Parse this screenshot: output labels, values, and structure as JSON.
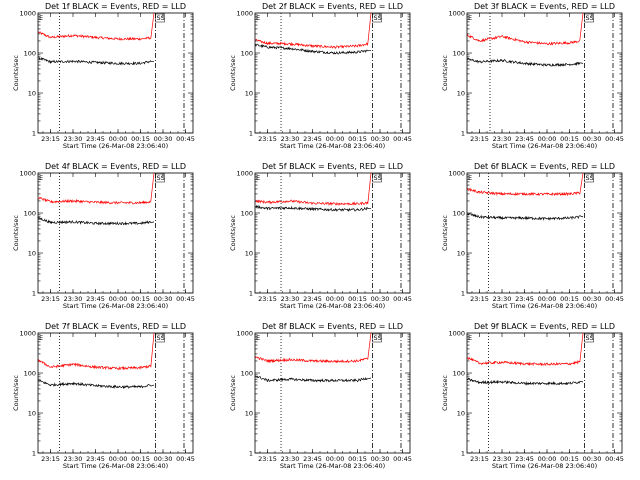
{
  "chart_data": [
    {
      "type": "line",
      "title": "Det 1f BLACK = Events, RED = LLD",
      "xlabel": "Start Time (26-Mar-08 23:06:40)",
      "ylabel": "Counts/sec",
      "x_ticks": [
        "23:15",
        "23:30",
        "23:45",
        "00:00",
        "00:15",
        "00:30",
        "00:45"
      ],
      "y_ticks": [
        "1",
        "10",
        "100",
        "1000"
      ],
      "y_scale": "log",
      "ylim": [
        1,
        1000
      ],
      "xlim": [
        "23:06:40",
        "00:50:00"
      ],
      "dotted_vline": "23:21",
      "dashdot_vlines": [
        "00:25",
        "00:44"
      ],
      "flag_label": "SS",
      "flag_at": "00:25",
      "series": [
        {
          "color": "#ff0000",
          "x": [
            "23:07",
            "23:15",
            "23:30",
            "23:45",
            "00:00",
            "00:15",
            "00:22",
            "00:24"
          ],
          "y": [
            330,
            245,
            275,
            245,
            225,
            225,
            240,
            1000
          ]
        },
        {
          "color": "#000000",
          "x": [
            "23:07",
            "23:15",
            "23:30",
            "23:45",
            "00:00",
            "00:15",
            "00:22",
            "00:24"
          ],
          "y": [
            75,
            60,
            62,
            58,
            55,
            55,
            62,
            62
          ]
        }
      ]
    },
    {
      "type": "line",
      "title": "Det 2f BLACK = Events, RED = LLD",
      "xlabel": "Start Time (26-Mar-08 23:06:40)",
      "ylabel": "Counts/sec",
      "x_ticks": [
        "23:15",
        "23:30",
        "23:45",
        "00:00",
        "00:15",
        "00:30",
        "00:45"
      ],
      "y_ticks": [
        "1",
        "10",
        "100",
        "1000"
      ],
      "y_scale": "log",
      "ylim": [
        1,
        1000
      ],
      "xlim": [
        "23:06:40",
        "00:50:00"
      ],
      "dotted_vline": "23:24",
      "dashdot_vlines": [
        "00:25",
        "00:44"
      ],
      "flag_label": "SS",
      "flag_at": "00:25",
      "series": [
        {
          "color": "#ff0000",
          "x": [
            "23:07",
            "23:15",
            "23:30",
            "23:45",
            "00:00",
            "00:15",
            "00:22",
            "00:24"
          ],
          "y": [
            210,
            175,
            170,
            150,
            140,
            150,
            170,
            1000
          ]
        },
        {
          "color": "#000000",
          "x": [
            "23:07",
            "23:15",
            "23:30",
            "23:45",
            "00:00",
            "00:15",
            "00:22",
            "00:24"
          ],
          "y": [
            160,
            140,
            130,
            110,
            100,
            105,
            115,
            115
          ]
        }
      ]
    },
    {
      "type": "line",
      "title": "Det 3f BLACK = Events, RED = LLD",
      "xlabel": "Start Time (26-Mar-08 23:06:40)",
      "ylabel": "Counts/sec",
      "x_ticks": [
        "23:15",
        "23:30",
        "23:45",
        "00:00",
        "00:15",
        "00:30",
        "00:45"
      ],
      "y_ticks": [
        "1",
        "10",
        "100",
        "1000"
      ],
      "y_scale": "log",
      "ylim": [
        1,
        1000
      ],
      "xlim": [
        "23:06:40",
        "00:50:00"
      ],
      "dotted_vline": "23:22",
      "dashdot_vlines": [
        "00:25",
        "00:44"
      ],
      "flag_label": "SS",
      "flag_at": "00:25",
      "series": [
        {
          "color": "#ff0000",
          "x": [
            "23:07",
            "23:15",
            "23:30",
            "23:45",
            "00:00",
            "00:15",
            "00:22",
            "00:24"
          ],
          "y": [
            280,
            200,
            260,
            190,
            170,
            180,
            200,
            1000
          ]
        },
        {
          "color": "#000000",
          "x": [
            "23:07",
            "23:15",
            "23:30",
            "23:45",
            "00:00",
            "00:15",
            "00:22",
            "00:24"
          ],
          "y": [
            70,
            60,
            65,
            55,
            50,
            52,
            55,
            55
          ]
        }
      ]
    },
    {
      "type": "line",
      "title": "Det 4f BLACK = Events, RED = LLD",
      "xlabel": "Start Time (26-Mar-08 23:06:40)",
      "ylabel": "Counts/sec",
      "x_ticks": [
        "23:15",
        "23:30",
        "23:45",
        "00:00",
        "00:15",
        "00:30",
        "00:45"
      ],
      "y_ticks": [
        "1",
        "10",
        "100",
        "1000"
      ],
      "y_scale": "log",
      "ylim": [
        1,
        1000
      ],
      "xlim": [
        "23:06:40",
        "00:50:00"
      ],
      "dotted_vline": "23:21",
      "dashdot_vlines": [
        "00:25",
        "00:44"
      ],
      "flag_label": "SS",
      "flag_at": "00:25",
      "series": [
        {
          "color": "#ff0000",
          "x": [
            "23:07",
            "23:15",
            "23:30",
            "23:45",
            "00:00",
            "00:15",
            "00:22",
            "00:24"
          ],
          "y": [
            240,
            190,
            200,
            185,
            180,
            180,
            190,
            1000
          ]
        },
        {
          "color": "#000000",
          "x": [
            "23:07",
            "23:15",
            "23:30",
            "23:45",
            "00:00",
            "00:15",
            "00:22",
            "00:24"
          ],
          "y": [
            75,
            58,
            60,
            55,
            55,
            55,
            60,
            60
          ]
        }
      ]
    },
    {
      "type": "line",
      "title": "Det 5f BLACK = Events, RED = LLD",
      "xlabel": "Start Time (26-Mar-08 23:06:40)",
      "ylabel": "Counts/sec",
      "x_ticks": [
        "23:15",
        "23:30",
        "23:45",
        "00:00",
        "00:15",
        "00:30",
        "00:45"
      ],
      "y_ticks": [
        "1",
        "10",
        "100",
        "1000"
      ],
      "y_scale": "log",
      "ylim": [
        1,
        1000
      ],
      "xlim": [
        "23:06:40",
        "00:50:00"
      ],
      "dotted_vline": "23:24",
      "dashdot_vlines": [
        "00:25",
        "00:44"
      ],
      "flag_label": "SS",
      "flag_at": "00:25",
      "series": [
        {
          "color": "#ff0000",
          "x": [
            "23:07",
            "23:15",
            "23:30",
            "23:45",
            "00:00",
            "00:15",
            "00:22",
            "00:24"
          ],
          "y": [
            200,
            185,
            200,
            175,
            170,
            170,
            180,
            1000
          ]
        },
        {
          "color": "#000000",
          "x": [
            "23:07",
            "23:15",
            "23:30",
            "23:45",
            "00:00",
            "00:15",
            "00:22",
            "00:24"
          ],
          "y": [
            145,
            130,
            135,
            125,
            120,
            120,
            130,
            130
          ]
        }
      ]
    },
    {
      "type": "line",
      "title": "Det 6f BLACK = Events, RED = LLD",
      "xlabel": "Start Time (26-Mar-08 23:06:40)",
      "ylabel": "Counts/sec",
      "x_ticks": [
        "23:15",
        "23:30",
        "23:45",
        "00:00",
        "00:15",
        "00:30",
        "00:45"
      ],
      "y_ticks": [
        "1",
        "10",
        "100",
        "1000"
      ],
      "y_scale": "log",
      "ylim": [
        1,
        1000
      ],
      "xlim": [
        "23:06:40",
        "00:50:00"
      ],
      "dotted_vline": "23:21",
      "dashdot_vlines": [
        "00:25",
        "00:44"
      ],
      "flag_label": "SS",
      "flag_at": "00:25",
      "series": [
        {
          "color": "#ff0000",
          "x": [
            "23:07",
            "23:15",
            "23:30",
            "23:45",
            "00:00",
            "00:15",
            "00:22",
            "00:24"
          ],
          "y": [
            400,
            330,
            300,
            300,
            295,
            300,
            320,
            1000
          ]
        },
        {
          "color": "#000000",
          "x": [
            "23:07",
            "23:15",
            "23:30",
            "23:45",
            "00:00",
            "00:15",
            "00:22",
            "00:24"
          ],
          "y": [
            95,
            80,
            75,
            75,
            72,
            75,
            80,
            80
          ]
        }
      ]
    },
    {
      "type": "line",
      "title": "Det 7f BLACK = Events, RED = LLD",
      "xlabel": "Start Time (26-Mar-08 23:06:40)",
      "ylabel": "Counts/sec",
      "x_ticks": [
        "23:15",
        "23:30",
        "23:45",
        "00:00",
        "00:15",
        "00:30",
        "00:45"
      ],
      "y_ticks": [
        "1",
        "10",
        "100",
        "1000"
      ],
      "y_scale": "log",
      "ylim": [
        1,
        1000
      ],
      "xlim": [
        "23:06:40",
        "00:50:00"
      ],
      "dotted_vline": "23:21",
      "dashdot_vlines": [
        "00:25",
        "00:44"
      ],
      "flag_label": "SS",
      "flag_at": "00:25",
      "series": [
        {
          "color": "#ff0000",
          "x": [
            "23:07",
            "23:15",
            "23:30",
            "23:45",
            "00:00",
            "00:15",
            "00:22",
            "00:24"
          ],
          "y": [
            210,
            140,
            165,
            140,
            130,
            135,
            150,
            1000
          ]
        },
        {
          "color": "#000000",
          "x": [
            "23:07",
            "23:15",
            "23:30",
            "23:45",
            "00:00",
            "00:15",
            "00:22",
            "00:24"
          ],
          "y": [
            65,
            50,
            55,
            48,
            45,
            45,
            50,
            50
          ]
        }
      ]
    },
    {
      "type": "line",
      "title": "Det 8f BLACK = Events, RED = LLD",
      "xlabel": "Start Time (26-Mar-08 23:06:40)",
      "ylabel": "Counts/sec",
      "x_ticks": [
        "23:15",
        "23:30",
        "23:45",
        "00:00",
        "00:15",
        "00:30",
        "00:45"
      ],
      "y_ticks": [
        "1",
        "10",
        "100",
        "1000"
      ],
      "y_scale": "log",
      "ylim": [
        1,
        1000
      ],
      "xlim": [
        "23:06:40",
        "00:50:00"
      ],
      "dotted_vline": "23:24",
      "dashdot_vlines": [
        "00:25",
        "00:44"
      ],
      "flag_label": "SS",
      "flag_at": "00:25",
      "series": [
        {
          "color": "#ff0000",
          "x": [
            "23:07",
            "23:15",
            "23:30",
            "23:45",
            "00:00",
            "00:15",
            "00:22",
            "00:24"
          ],
          "y": [
            250,
            200,
            215,
            200,
            195,
            200,
            230,
            1000
          ]
        },
        {
          "color": "#000000",
          "x": [
            "23:07",
            "23:15",
            "23:30",
            "23:45",
            "00:00",
            "00:15",
            "00:22",
            "00:24"
          ],
          "y": [
            85,
            65,
            70,
            65,
            65,
            65,
            75,
            75
          ]
        }
      ]
    },
    {
      "type": "line",
      "title": "Det 9f BLACK = Events, RED = LLD",
      "xlabel": "Start Time (26-Mar-08 23:06:40)",
      "ylabel": "Counts/sec",
      "x_ticks": [
        "23:15",
        "23:30",
        "23:45",
        "00:00",
        "00:15",
        "00:30",
        "00:45"
      ],
      "y_ticks": [
        "1",
        "10",
        "100",
        "1000"
      ],
      "y_scale": "log",
      "ylim": [
        1,
        1000
      ],
      "xlim": [
        "23:06:40",
        "00:50:00"
      ],
      "dotted_vline": "23:21",
      "dashdot_vlines": [
        "00:25",
        "00:44"
      ],
      "flag_label": "SS",
      "flag_at": "00:25",
      "series": [
        {
          "color": "#ff0000",
          "x": [
            "23:07",
            "23:15",
            "23:30",
            "23:45",
            "00:00",
            "00:15",
            "00:22",
            "00:24"
          ],
          "y": [
            240,
            175,
            185,
            170,
            165,
            170,
            190,
            1000
          ]
        },
        {
          "color": "#000000",
          "x": [
            "23:07",
            "23:15",
            "23:30",
            "23:45",
            "00:00",
            "00:15",
            "00:22",
            "00:24"
          ],
          "y": [
            70,
            58,
            60,
            55,
            55,
            55,
            60,
            60
          ]
        }
      ]
    }
  ]
}
